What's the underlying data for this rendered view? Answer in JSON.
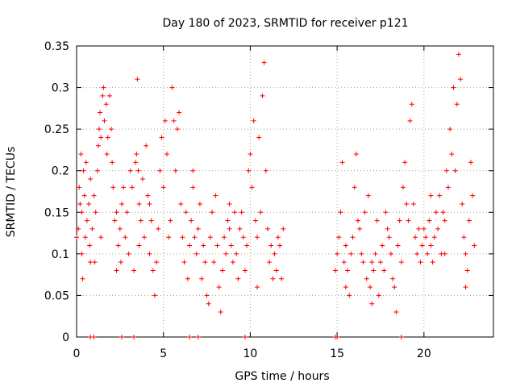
{
  "chart_data": {
    "type": "scatter",
    "title": "Day 180 of 2023, SRMTID for receiver p121",
    "xlabel": "GPS time / hours",
    "ylabel": "SRMTID / TECUs",
    "xlim": [
      0,
      24
    ],
    "ylim": [
      0,
      0.35
    ],
    "x_ticks": [
      0,
      5,
      10,
      15,
      20
    ],
    "y_ticks": [
      0,
      0.05,
      0.1,
      0.15,
      0.2,
      0.25,
      0.3,
      0.35
    ],
    "x_tick_labels": [
      "0",
      "5",
      "10",
      "15",
      "20"
    ],
    "y_tick_labels": [
      "0",
      "0.05",
      "0.1",
      "0.15",
      "0.2",
      "0.25",
      "0.3",
      "0.35"
    ],
    "grid": true,
    "marker": "+",
    "color": "#ff0000",
    "series": [
      {
        "name": "SRMTID",
        "points": [
          [
            0.0,
            0.12
          ],
          [
            0.1,
            0.13
          ],
          [
            0.15,
            0.18
          ],
          [
            0.2,
            0.16
          ],
          [
            0.25,
            0.22
          ],
          [
            0.3,
            0.15
          ],
          [
            0.35,
            0.07
          ],
          [
            0.4,
            0.2
          ],
          [
            0.45,
            0.17
          ],
          [
            0.5,
            0.12
          ],
          [
            0.55,
            0.21
          ],
          [
            0.6,
            0.14
          ],
          [
            0.7,
            0.16
          ],
          [
            0.75,
            0.11
          ],
          [
            0.8,
            0.19
          ],
          [
            0.9,
            0.13
          ],
          [
            1.0,
            0.17
          ],
          [
            1.05,
            0.09
          ],
          [
            1.1,
            0.15
          ],
          [
            1.2,
            0.2
          ],
          [
            1.25,
            0.23
          ],
          [
            1.3,
            0.25
          ],
          [
            1.35,
            0.27
          ],
          [
            1.4,
            0.24
          ],
          [
            1.5,
            0.29
          ],
          [
            1.55,
            0.3
          ],
          [
            1.6,
            0.26
          ],
          [
            1.7,
            0.28
          ],
          [
            1.75,
            0.22
          ],
          [
            1.8,
            0.24
          ],
          [
            1.9,
            0.29
          ],
          [
            2.0,
            0.25
          ],
          [
            2.05,
            0.21
          ],
          [
            2.1,
            0.18
          ],
          [
            2.2,
            0.14
          ],
          [
            2.3,
            0.15
          ],
          [
            2.4,
            0.11
          ],
          [
            2.5,
            0.13
          ],
          [
            2.55,
            0.09
          ],
          [
            2.6,
            0.16
          ],
          [
            2.7,
            0.18
          ],
          [
            2.8,
            0.12
          ],
          [
            2.9,
            0.15
          ],
          [
            3.0,
            0.1
          ],
          [
            3.1,
            0.2
          ],
          [
            3.2,
            0.18
          ],
          [
            3.3,
            0.08
          ],
          [
            3.4,
            0.21
          ],
          [
            3.45,
            0.22
          ],
          [
            3.5,
            0.31
          ],
          [
            3.55,
            0.2
          ],
          [
            3.6,
            0.16
          ],
          [
            3.7,
            0.14
          ],
          [
            3.8,
            0.19
          ],
          [
            3.9,
            0.12
          ],
          [
            4.0,
            0.23
          ],
          [
            4.1,
            0.17
          ],
          [
            4.2,
            0.1
          ],
          [
            4.3,
            0.14
          ],
          [
            4.4,
            0.08
          ],
          [
            4.5,
            0.05
          ],
          [
            4.6,
            0.09
          ],
          [
            4.7,
            0.13
          ],
          [
            4.8,
            0.2
          ],
          [
            4.9,
            0.24
          ],
          [
            5.0,
            0.18
          ],
          [
            5.1,
            0.26
          ],
          [
            5.2,
            0.22
          ],
          [
            5.3,
            0.12
          ],
          [
            5.4,
            0.14
          ],
          [
            5.5,
            0.3
          ],
          [
            5.6,
            0.26
          ],
          [
            5.7,
            0.2
          ],
          [
            5.8,
            0.25
          ],
          [
            5.9,
            0.27
          ],
          [
            6.0,
            0.16
          ],
          [
            6.1,
            0.12
          ],
          [
            6.2,
            0.09
          ],
          [
            6.3,
            0.15
          ],
          [
            6.4,
            0.07
          ],
          [
            6.5,
            0.11
          ],
          [
            6.6,
            0.14
          ],
          [
            6.7,
            0.18
          ],
          [
            6.8,
            0.12
          ],
          [
            6.9,
            0.1
          ],
          [
            7.0,
            0.13
          ],
          [
            7.1,
            0.16
          ],
          [
            7.2,
            0.07
          ],
          [
            7.3,
            0.11
          ],
          [
            7.4,
            0.09
          ],
          [
            7.5,
            0.05
          ],
          [
            7.6,
            0.04
          ],
          [
            7.7,
            0.12
          ],
          [
            7.8,
            0.15
          ],
          [
            7.9,
            0.09
          ],
          [
            8.0,
            0.17
          ],
          [
            8.1,
            0.11
          ],
          [
            8.2,
            0.06
          ],
          [
            8.3,
            0.03
          ],
          [
            8.4,
            0.08
          ],
          [
            8.5,
            0.12
          ],
          [
            8.6,
            0.1
          ],
          [
            8.7,
            0.14
          ],
          [
            8.8,
            0.13
          ],
          [
            8.9,
            0.11
          ],
          [
            9.0,
            0.09
          ],
          [
            9.1,
            0.15
          ],
          [
            9.2,
            0.1
          ],
          [
            9.3,
            0.07
          ],
          [
            9.4,
            0.13
          ],
          [
            9.5,
            0.15
          ],
          [
            9.6,
            0.12
          ],
          [
            9.7,
            0.08
          ],
          [
            9.8,
            0.11
          ],
          [
            9.9,
            0.2
          ],
          [
            10.0,
            0.22
          ],
          [
            10.1,
            0.18
          ],
          [
            10.2,
            0.26
          ],
          [
            10.3,
            0.14
          ],
          [
            10.4,
            0.12
          ],
          [
            10.5,
            0.24
          ],
          [
            10.6,
            0.15
          ],
          [
            10.7,
            0.29
          ],
          [
            10.8,
            0.33
          ],
          [
            10.9,
            0.2
          ],
          [
            11.0,
            0.13
          ],
          [
            11.1,
            0.09
          ],
          [
            11.2,
            0.11
          ],
          [
            11.3,
            0.07
          ],
          [
            11.4,
            0.1
          ],
          [
            11.5,
            0.08
          ],
          [
            11.6,
            0.12
          ],
          [
            11.7,
            0.11
          ],
          [
            11.8,
            0.07
          ],
          [
            11.9,
            0.13
          ],
          [
            14.9,
            0.08
          ],
          [
            15.0,
            0.1
          ],
          [
            15.1,
            0.12
          ],
          [
            15.2,
            0.15
          ],
          [
            15.3,
            0.21
          ],
          [
            15.4,
            0.09
          ],
          [
            15.5,
            0.11
          ],
          [
            15.6,
            0.08
          ],
          [
            15.7,
            0.05
          ],
          [
            15.8,
            0.1
          ],
          [
            15.9,
            0.12
          ],
          [
            16.0,
            0.18
          ],
          [
            16.1,
            0.22
          ],
          [
            16.2,
            0.14
          ],
          [
            16.3,
            0.13
          ],
          [
            16.4,
            0.1
          ],
          [
            16.5,
            0.09
          ],
          [
            16.6,
            0.15
          ],
          [
            16.7,
            0.07
          ],
          [
            16.8,
            0.17
          ],
          [
            16.9,
            0.06
          ],
          [
            17.0,
            0.09
          ],
          [
            17.1,
            0.08
          ],
          [
            17.2,
            0.1
          ],
          [
            17.3,
            0.14
          ],
          [
            17.4,
            0.05
          ],
          [
            17.5,
            0.09
          ],
          [
            17.6,
            0.11
          ],
          [
            17.7,
            0.08
          ],
          [
            17.8,
            0.15
          ],
          [
            17.9,
            0.13
          ],
          [
            18.0,
            0.12
          ],
          [
            18.1,
            0.1
          ],
          [
            18.2,
            0.07
          ],
          [
            18.3,
            0.06
          ],
          [
            18.4,
            0.03
          ],
          [
            18.5,
            0.11
          ],
          [
            18.6,
            0.14
          ],
          [
            18.7,
            0.09
          ],
          [
            18.8,
            0.18
          ],
          [
            18.9,
            0.21
          ],
          [
            19.0,
            0.16
          ],
          [
            19.1,
            0.14
          ],
          [
            19.2,
            0.26
          ],
          [
            19.3,
            0.28
          ],
          [
            19.4,
            0.16
          ],
          [
            19.5,
            0.12
          ],
          [
            19.6,
            0.1
          ],
          [
            19.7,
            0.13
          ],
          [
            19.8,
            0.09
          ],
          [
            19.9,
            0.11
          ],
          [
            20.0,
            0.13
          ],
          [
            20.1,
            0.12
          ],
          [
            20.2,
            0.1
          ],
          [
            20.3,
            0.14
          ],
          [
            20.4,
            0.11
          ],
          [
            20.5,
            0.09
          ],
          [
            20.6,
            0.12
          ],
          [
            20.7,
            0.15
          ],
          [
            20.8,
            0.13
          ],
          [
            20.9,
            0.17
          ],
          [
            21.0,
            0.1
          ],
          [
            21.1,
            0.15
          ],
          [
            21.2,
            0.14
          ],
          [
            21.3,
            0.2
          ],
          [
            21.4,
            0.18
          ],
          [
            21.5,
            0.25
          ],
          [
            21.6,
            0.22
          ],
          [
            21.7,
            0.3
          ],
          [
            21.8,
            0.2
          ],
          [
            21.9,
            0.28
          ],
          [
            22.0,
            0.34
          ],
          [
            22.1,
            0.31
          ],
          [
            22.2,
            0.16
          ],
          [
            22.3,
            0.12
          ],
          [
            22.4,
            0.1
          ],
          [
            22.5,
            0.08
          ],
          [
            22.6,
            0.14
          ],
          [
            22.7,
            0.21
          ],
          [
            22.8,
            0.17
          ],
          [
            22.9,
            0.11
          ],
          [
            0.3,
            0.1
          ],
          [
            0.8,
            0.09
          ],
          [
            1.4,
            0.12
          ],
          [
            2.3,
            0.08
          ],
          [
            3.6,
            0.11
          ],
          [
            4.2,
            0.16
          ],
          [
            6.7,
            0.2
          ],
          [
            8.8,
            0.16
          ],
          [
            10.4,
            0.06
          ],
          [
            15.5,
            0.06
          ],
          [
            17.0,
            0.04
          ],
          [
            20.4,
            0.17
          ],
          [
            21.2,
            0.1
          ],
          [
            22.4,
            0.06
          ]
        ]
      },
      {
        "name": "zero-values",
        "points": [
          [
            0.8,
            0
          ],
          [
            1.0,
            0
          ],
          [
            2.6,
            0
          ],
          [
            3.3,
            0
          ],
          [
            6.5,
            0
          ],
          [
            7.0,
            0
          ],
          [
            9.7,
            0
          ],
          [
            14.9,
            0
          ],
          [
            15.0,
            0
          ],
          [
            18.7,
            0
          ]
        ]
      }
    ]
  }
}
